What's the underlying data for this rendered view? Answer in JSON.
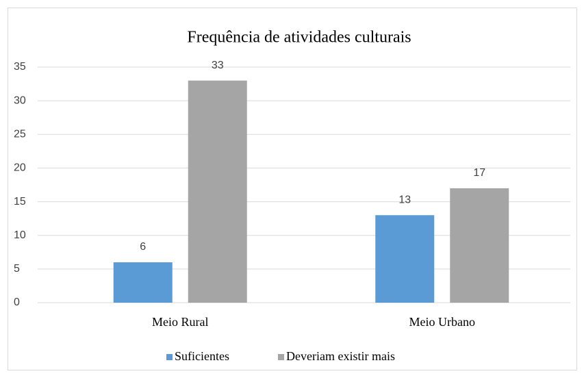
{
  "chart_data": {
    "type": "bar",
    "title": "Frequência de atividades culturais",
    "categories": [
      "Meio Rural",
      "Meio Urbano"
    ],
    "series": [
      {
        "name": "Suficientes",
        "color": "#5b9bd5",
        "values": [
          6,
          13
        ]
      },
      {
        "name": "Deveriam existir mais",
        "color": "#a5a5a5",
        "values": [
          33,
          17
        ]
      }
    ],
    "ylim": [
      0,
      35
    ],
    "yticks": [
      0,
      5,
      10,
      15,
      20,
      25,
      30,
      35
    ],
    "grid": true,
    "legend": "bottom"
  }
}
